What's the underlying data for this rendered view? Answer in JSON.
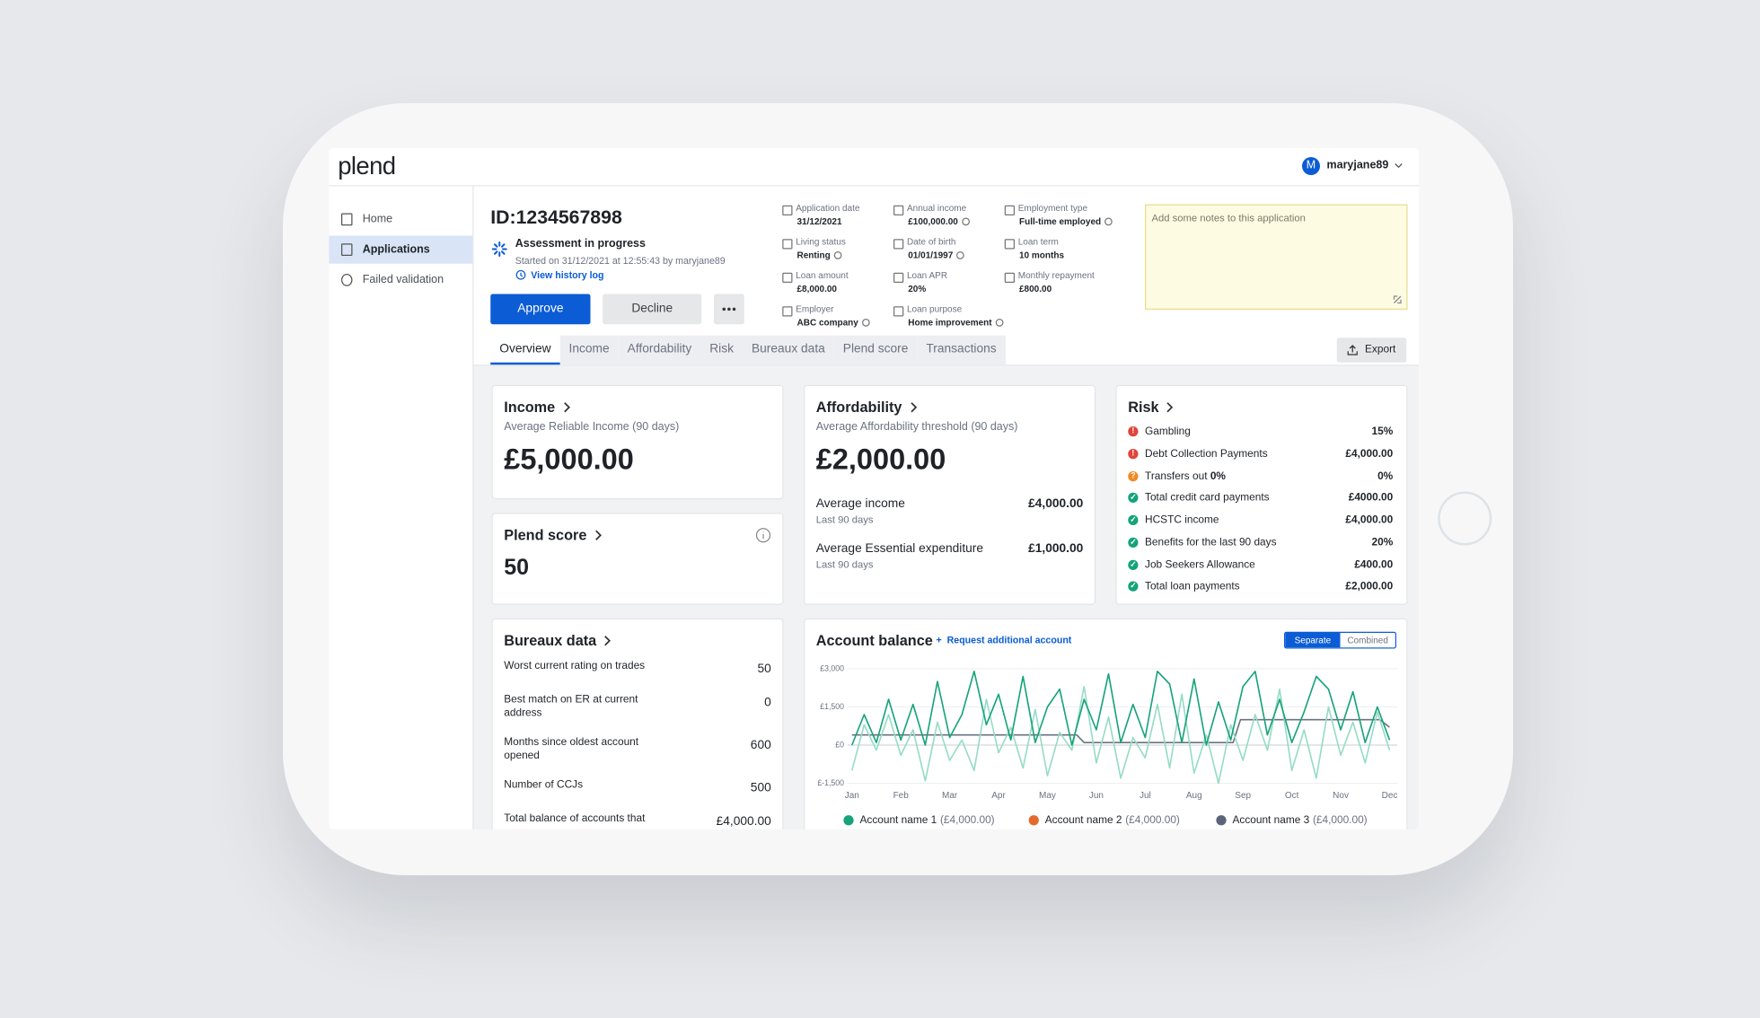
{
  "header": {
    "logo": "plend",
    "user_initial": "M",
    "username": "maryjane89"
  },
  "sidebar": {
    "items": [
      "Home",
      "Applications",
      "Failed validation"
    ],
    "active": 1
  },
  "application": {
    "id": "ID:1234567898",
    "status": "Assessment in progress",
    "started": "Started on 31/12/2021 at 12:55:43 by maryjane89",
    "history_link": "View history log",
    "actions": [
      "Approve",
      "Decline"
    ],
    "fields": [
      {
        "label": "Application date",
        "value": "31/12/2021"
      },
      {
        "label": "Annual income",
        "value": "£100,000.00",
        "verified": true
      },
      {
        "label": "Employment type",
        "value": "Full-time employed",
        "verified": true
      },
      {
        "label": "Living status",
        "value": "Renting",
        "verified": true
      },
      {
        "label": "Date of birth",
        "value": "01/01/1997",
        "verified": true
      },
      {
        "label": "Loan term",
        "value": "10 months"
      },
      {
        "label": "Loan amount",
        "value": "£8,000.00"
      },
      {
        "label": "Loan APR",
        "value": "20%"
      },
      {
        "label": "Monthly repayment",
        "value": "£800.00"
      },
      {
        "label": "Employer",
        "value": "ABC company",
        "verified": true
      },
      {
        "label": "Loan purpose",
        "value": "Home improvement",
        "verified": true
      }
    ],
    "notes_placeholder": "Add some notes to this application"
  },
  "tabs": {
    "items": [
      "Overview",
      "Income",
      "Affordability",
      "Risk",
      "Bureaux data",
      "Plend score",
      "Transactions"
    ],
    "active": 0,
    "export": "Export"
  },
  "income": {
    "title": "Income",
    "subtitle": "Average Reliable Income (90 days)",
    "value": "£5,000.00"
  },
  "plend_score": {
    "title": "Plend score",
    "value": "50"
  },
  "bureaux": {
    "title": "Bureaux data",
    "rows": [
      {
        "label": "Worst current rating on trades",
        "value": "50"
      },
      {
        "label": "Best match on ER at current address",
        "value": "0"
      },
      {
        "label": "Months since oldest account opened",
        "value": "600"
      },
      {
        "label": "Number of CCJs",
        "value": "500"
      },
      {
        "label": "Total balance of accounts that",
        "value": "£4,000.00"
      }
    ]
  },
  "affordability": {
    "title": "Affordability",
    "subtitle": "Average Affordability threshold (90 days)",
    "value": "£2,000.00",
    "rows": [
      {
        "label": "Average income",
        "sub": "Last 90 days",
        "value": "£4,000.00"
      },
      {
        "label": "Average Essential expenditure",
        "sub": "Last 90 days",
        "value": "£1,000.00"
      }
    ]
  },
  "risk": {
    "title": "Risk",
    "rows": [
      {
        "status": "fail",
        "label": "Gambling",
        "value": "15%"
      },
      {
        "status": "fail",
        "label": "Debt Collection Payments",
        "value": "£4,000.00"
      },
      {
        "status": "warn",
        "label": "Transfers out",
        "label_extra": "0%",
        "value": "0%"
      },
      {
        "status": "pass",
        "label": "Total credit card payments",
        "value": "£4000.00"
      },
      {
        "status": "pass",
        "label": "HCSTC income",
        "value": "£4,000.00"
      },
      {
        "status": "pass",
        "label": "Benefits for the last 90 days",
        "value": "20%"
      },
      {
        "status": "pass",
        "label": "Job Seekers Allowance",
        "value": "£400.00"
      },
      {
        "status": "pass",
        "label": "Total loan payments",
        "value": "£2,000.00"
      }
    ]
  },
  "account_balance": {
    "title": "Account balance",
    "action": "Request additional account",
    "toggle": [
      "Separate",
      "Combined"
    ],
    "toggle_active": 0,
    "chart_data": {
      "type": "line",
      "x": [
        0,
        0.25,
        0.5,
        0.75,
        1,
        1.25,
        1.5,
        1.75,
        2,
        2.25,
        2.5,
        2.75,
        3,
        3.25,
        3.5,
        3.75,
        4,
        4.25,
        4.5,
        4.75,
        5,
        5.25,
        5.5,
        5.75,
        6,
        6.25,
        6.5,
        6.75,
        7,
        7.25,
        7.5,
        7.75,
        8,
        8.25,
        8.5,
        8.75,
        9,
        9.25,
        9.5,
        9.75,
        10,
        10.25,
        10.5,
        10.75,
        11
      ],
      "xlim": [
        0,
        11
      ],
      "xticks": [
        {
          "value": 0,
          "label": "Jan"
        },
        {
          "value": 1,
          "label": "Feb"
        },
        {
          "value": 2,
          "label": "Mar"
        },
        {
          "value": 3,
          "label": "Apr"
        },
        {
          "value": 4,
          "label": "May"
        },
        {
          "value": 5,
          "label": "Jun"
        },
        {
          "value": 6,
          "label": "Jul"
        },
        {
          "value": 7,
          "label": "Aug"
        },
        {
          "value": 8,
          "label": "Sep"
        },
        {
          "value": 9,
          "label": "Oct"
        },
        {
          "value": 10,
          "label": "Nov"
        },
        {
          "value": 11,
          "label": "Dec"
        }
      ],
      "ylim": [
        -1500,
        3000
      ],
      "yticks": [
        {
          "value": 3000,
          "label": "£3,000"
        },
        {
          "value": 1500,
          "label": "£1,500"
        },
        {
          "value": 0,
          "label": "£0"
        },
        {
          "value": -1500,
          "label": "£-1,500"
        }
      ],
      "grid": true,
      "series": [
        {
          "name": "Account name 1",
          "total": "(£4,000.00)",
          "color": "#16a37a",
          "line_color": "#16a37a",
          "values": [
            0,
            1200,
            100,
            1800,
            200,
            1600,
            0,
            2500,
            300,
            1200,
            2900,
            800,
            2000,
            200,
            2700,
            100,
            1500,
            2200,
            0,
            1800,
            600,
            2800,
            100,
            1600,
            300,
            2900,
            2400,
            100,
            2600,
            0,
            1700,
            200,
            2300,
            2900,
            400,
            1800,
            100,
            1300,
            2700,
            2200,
            600,
            2100,
            100,
            1500,
            200
          ]
        },
        {
          "name": "Account name 2",
          "total": "(£4,000.00)",
          "color": "#e4692b",
          "line_color": "#96dcc4",
          "values": [
            -1000,
            800,
            -200,
            1200,
            -400,
            600,
            -1400,
            900,
            -600,
            200,
            -1000,
            1800,
            -300,
            700,
            -900,
            1400,
            -1200,
            500,
            -200,
            2300,
            -700,
            1100,
            -1300,
            300,
            -500,
            1600,
            -900,
            2000,
            -1100,
            400,
            -1500,
            800,
            -600,
            1200,
            -200,
            2200,
            -1000,
            600,
            -1300,
            1500,
            -400,
            900,
            -700,
            1300,
            -200
          ]
        },
        {
          "name": "Account name 3",
          "total": "(£4,000.00)",
          "color": "#5b6478",
          "line_color": "#6b7280",
          "x": [
            0,
            4.6,
            4.75,
            7.8,
            7.95,
            10.8,
            11
          ],
          "values": [
            400,
            400,
            100,
            100,
            1000,
            1000,
            700
          ]
        }
      ]
    }
  }
}
